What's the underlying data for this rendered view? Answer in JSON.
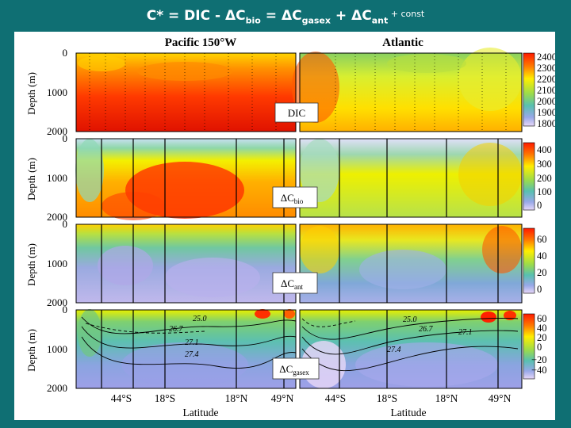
{
  "slide": {
    "title_parts": [
      "C* = DIC - ",
      "ΔC",
      "bio",
      " = ",
      "ΔC",
      "gasex",
      " + ",
      "ΔC",
      "ant",
      " + const"
    ]
  },
  "figure": {
    "headers": [
      "Pacific 150°W",
      "Atlantic"
    ],
    "depth_label": "Depth (m)",
    "depth_ticks": [
      "0",
      "1000",
      "2000"
    ],
    "x_label": "Latitude",
    "lat_ticks_pacific": [
      "44°S",
      "18°S",
      "18°N",
      "49°N"
    ],
    "lat_ticks_atlantic": [
      "44°S",
      "18°S",
      "18°N",
      "49°N"
    ],
    "panels": [
      {
        "label": "DIC",
        "label_sub": "",
        "colorbar": [
          "2400",
          "2300",
          "2200",
          "2100",
          "2000",
          "1900",
          "1800"
        ]
      },
      {
        "label": "ΔC",
        "label_sub": "bio",
        "colorbar": [
          "400",
          "300",
          "200",
          "100",
          "0"
        ]
      },
      {
        "label": "ΔC",
        "label_sub": "ant",
        "colorbar": [
          "60",
          "40",
          "20",
          "0"
        ]
      },
      {
        "label": "ΔC",
        "label_sub": "gasex",
        "colorbar": [
          "60",
          "40",
          "20",
          "0",
          "−20",
          "−40"
        ]
      }
    ],
    "contours": [
      "25.0",
      "26.7",
      "27.1",
      "27.4",
      "25.0",
      "26.7",
      "27.1",
      "27.4"
    ],
    "colorscale": [
      "#ff1a00",
      "#ff8a00",
      "#ffff00",
      "#a9e84a",
      "#5fc8a8",
      "#8fa8e8",
      "#e8d8f8"
    ]
  }
}
